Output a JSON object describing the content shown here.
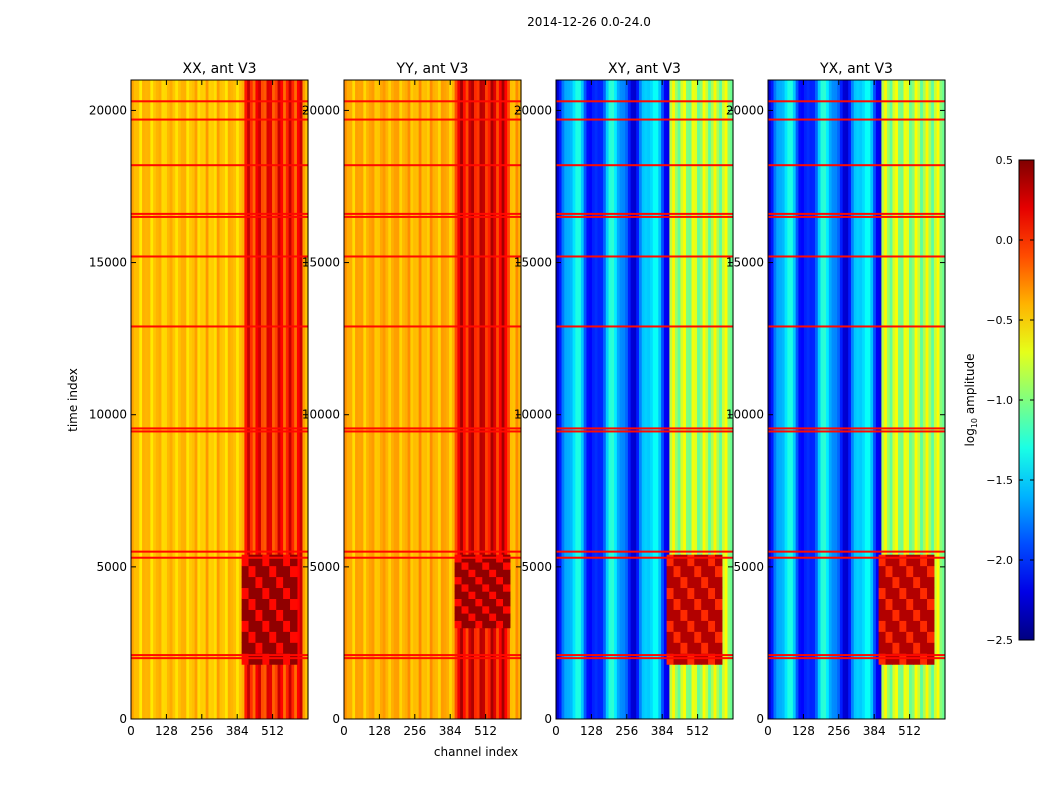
{
  "suptitle": "2014-12-26 0.0-24.0",
  "chart_data": {
    "type": "heatmap",
    "shared": {
      "xlabel": "channel index",
      "ylabel": "time index",
      "xticks": [
        0,
        128,
        256,
        384,
        512
      ],
      "yticks": [
        0,
        5000,
        10000,
        15000,
        20000
      ],
      "xlim": [
        0,
        640
      ],
      "ylim": [
        0,
        21000
      ]
    },
    "panels": [
      {
        "title": "XX, ant V3",
        "polarization": "XX",
        "level_profile": "parallel",
        "base_level": -0.45,
        "channel_band": {
          "start": 410,
          "end": 620,
          "level": 0.05
        },
        "hot_region": {
          "channel_start": 400,
          "channel_end": 600,
          "time_start": 1800,
          "time_end": 5400,
          "level": 0.45
        }
      },
      {
        "title": "YY, ant V3",
        "polarization": "YY",
        "level_profile": "parallel",
        "base_level": -0.4,
        "channel_band": {
          "start": 400,
          "end": 600,
          "level": 0.15
        },
        "hot_region": {
          "channel_start": 400,
          "channel_end": 600,
          "time_start": 3000,
          "time_end": 5400,
          "level": 0.45
        }
      },
      {
        "title": "XY, ant V3",
        "polarization": "XY",
        "level_profile": "cross",
        "base_level": -1.75,
        "channel_band": {
          "start": 410,
          "end": 640,
          "level": -0.85
        },
        "hot_region": {
          "channel_start": 400,
          "channel_end": 600,
          "time_start": 1800,
          "time_end": 5400,
          "level": 0.35
        }
      },
      {
        "title": "YX, ant V3",
        "polarization": "YX",
        "level_profile": "cross",
        "base_level": -1.75,
        "channel_band": {
          "start": 410,
          "end": 640,
          "level": -0.85
        },
        "hot_region": {
          "channel_start": 400,
          "channel_end": 600,
          "time_start": 1800,
          "time_end": 5400,
          "level": 0.35
        }
      }
    ],
    "bright_time_rows": [
      2000,
      2100,
      5300,
      5500,
      9450,
      9550,
      12900,
      15200,
      16500,
      16600,
      18200,
      19700,
      20300
    ],
    "colorbar": {
      "label": "log10 amplitude",
      "label_main": "log",
      "label_sub": "10",
      "label_rest": " amplitude",
      "colormap": "jet",
      "range": [
        -2.5,
        0.5
      ],
      "ticks": [
        0.5,
        0.0,
        -0.5,
        -1.0,
        -1.5,
        -2.0,
        -2.5
      ],
      "tick_labels": [
        "0.5",
        "0.0",
        "−0.5",
        "−1.0",
        "−1.5",
        "−2.0",
        "−2.5"
      ]
    }
  }
}
